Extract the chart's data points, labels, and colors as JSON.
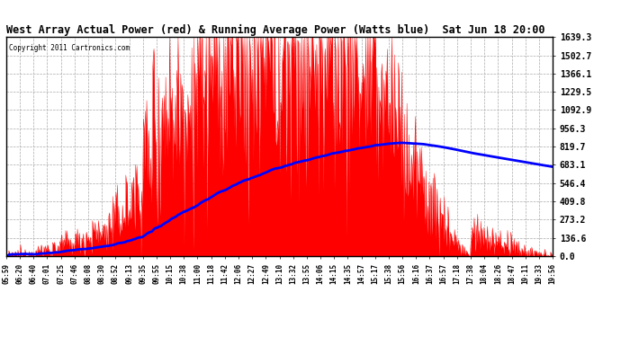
{
  "title": "West Array Actual Power (red) & Running Average Power (Watts blue)  Sat Jun 18 20:00",
  "copyright": "Copyright 2011 Cartronics.com",
  "ymax": 1639.3,
  "yticks": [
    0.0,
    136.6,
    273.2,
    409.8,
    546.4,
    683.1,
    819.7,
    956.3,
    1092.9,
    1229.5,
    1366.1,
    1502.7,
    1639.3
  ],
  "xtick_labels": [
    "05:59",
    "06:20",
    "06:40",
    "07:01",
    "07:25",
    "07:46",
    "08:08",
    "08:30",
    "08:52",
    "09:13",
    "09:35",
    "09:55",
    "10:15",
    "10:38",
    "11:00",
    "11:18",
    "11:42",
    "12:06",
    "12:27",
    "12:49",
    "13:10",
    "13:32",
    "13:55",
    "14:06",
    "14:15",
    "14:35",
    "14:57",
    "15:17",
    "15:38",
    "15:56",
    "16:16",
    "16:37",
    "16:57",
    "17:18",
    "17:38",
    "18:04",
    "18:26",
    "18:47",
    "19:11",
    "19:33",
    "19:56"
  ],
  "background_color": "#ffffff",
  "plot_bg_color": "#ffffff",
  "title_color": "#000000",
  "axis_color": "#000000",
  "grid_color": "#aaaaaa",
  "red_color": "#ff0000",
  "blue_color": "#0000ff"
}
